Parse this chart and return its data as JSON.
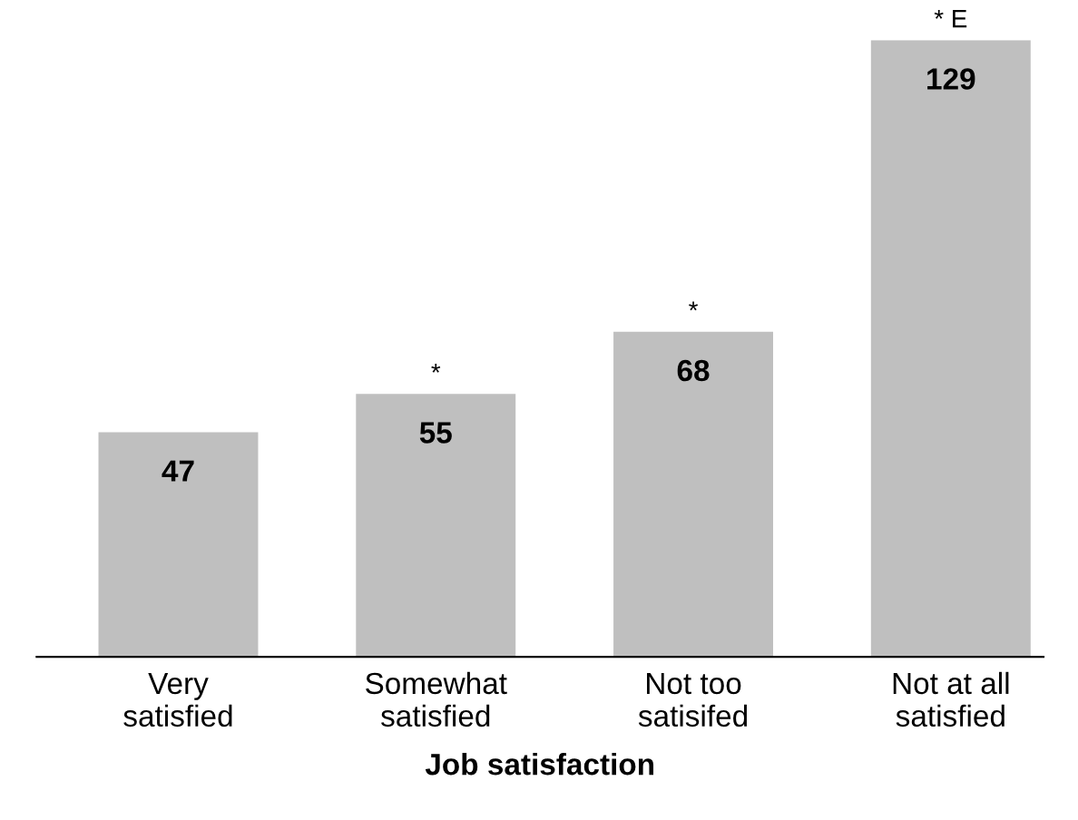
{
  "chart_data": {
    "type": "bar",
    "xlabel": "Job satisfaction",
    "categories": [
      "Very\nsatisfied",
      "Somewhat\nsatisfied",
      "Not too\nsatisifed",
      "Not at all\nsatisfied"
    ],
    "values": [
      47,
      55,
      68,
      129
    ],
    "color": "#bfbfbf",
    "ylim": [
      0,
      129
    ],
    "data_labels": true,
    "grid": false,
    "annotations": [
      {
        "text": "*",
        "x": "Somewhat\nsatisfied",
        "y": 55
      },
      {
        "text": "*",
        "x": "Not too\nsatisifed",
        "y": 68
      },
      {
        "text": "* E",
        "x": "Not at all\nsatisfied",
        "y": 129
      }
    ]
  }
}
